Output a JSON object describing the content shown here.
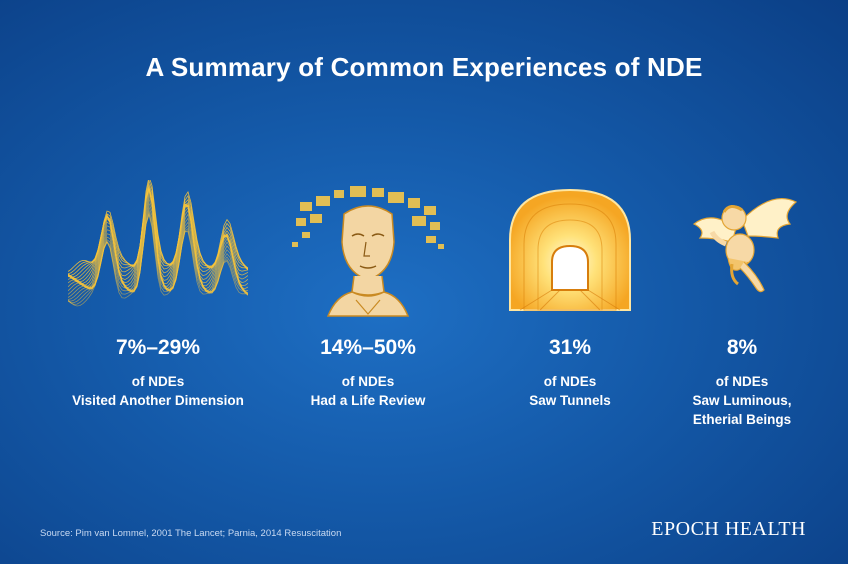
{
  "title": "A Summary of Common Experiences of NDE",
  "stats": [
    {
      "value": "7%–29%",
      "line1": "of NDEs",
      "line2": "Visited Another Dimension",
      "line3": ""
    },
    {
      "value": "14%–50%",
      "line1": "of NDEs",
      "line2": "Had a Life Review",
      "line3": ""
    },
    {
      "value": "31%",
      "line1": "of NDEs",
      "line2": "Saw Tunnels",
      "line3": ""
    },
    {
      "value": "8%",
      "line1": "of NDEs",
      "line2": "Saw Luminous,",
      "line3": "Etherial Beings"
    }
  ],
  "source": "Source: Pim van Lommel, 2001 The Lancet; Parnia, 2014 Resuscitation",
  "brand": "EPOCH HEALTH",
  "colors": {
    "accent": "#f5c33b",
    "background": "#1459a8"
  },
  "icons": [
    "wave-dimension-icon",
    "head-life-review-icon",
    "tunnel-icon",
    "angel-icon"
  ]
}
